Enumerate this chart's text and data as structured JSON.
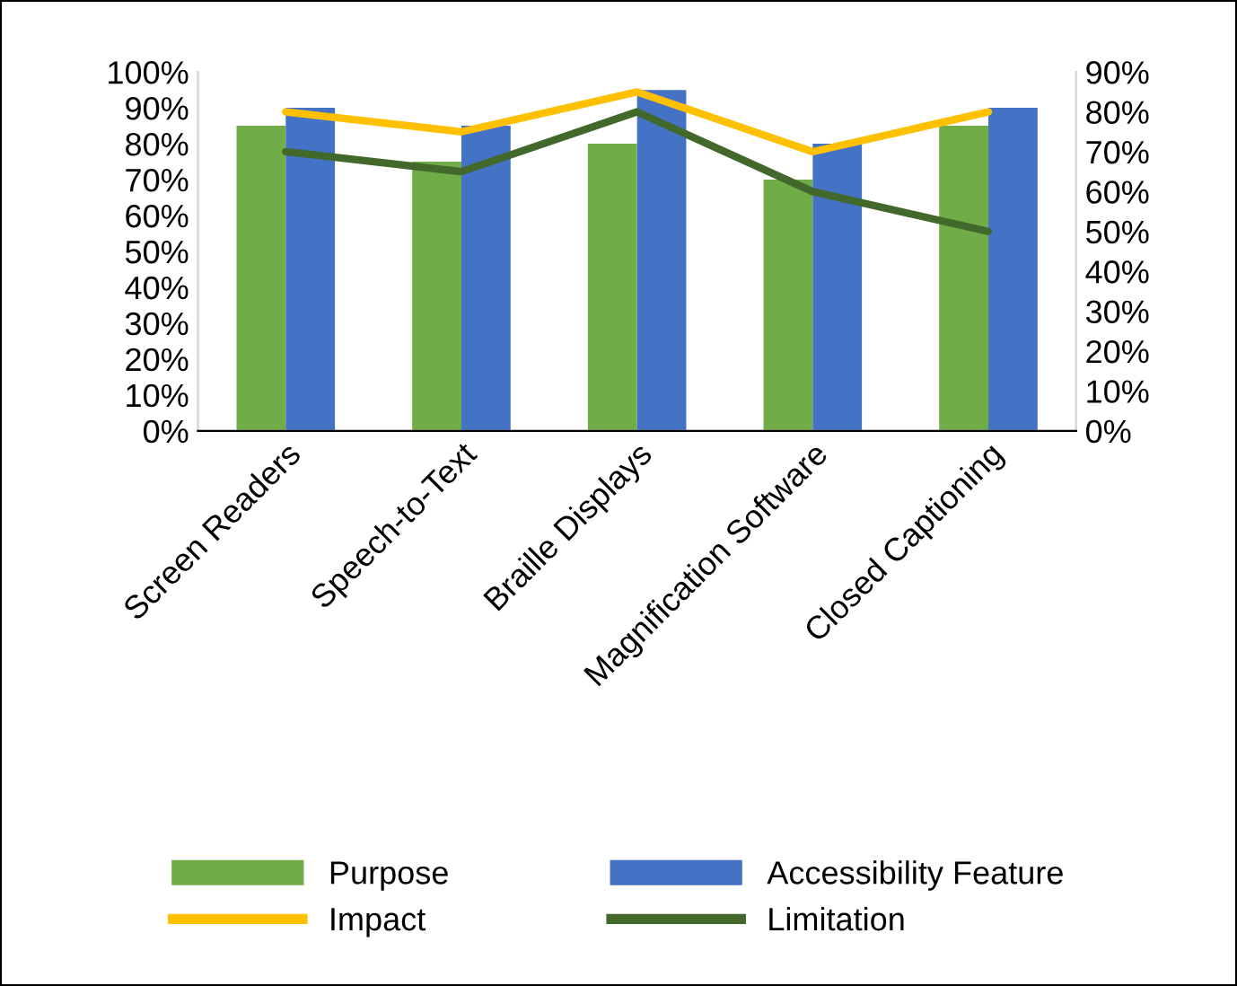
{
  "chart_data": {
    "type": "bar",
    "categories": [
      "Screen Readers",
      "Speech-to-Text",
      "Braille Displays",
      "Magnification Software",
      "Closed Captioning"
    ],
    "series": [
      {
        "name": "Purpose",
        "color": "#70ad47",
        "values": [
          85,
          75,
          80,
          70,
          85
        ]
      },
      {
        "name": "Accessibility Feature",
        "color": "#4472c4",
        "values": [
          90,
          85,
          95,
          80,
          90
        ]
      },
      {
        "name": "Impact",
        "type": "line",
        "axis": "y2",
        "color": "#ffc000",
        "values": [
          80,
          75,
          85,
          70,
          80
        ]
      },
      {
        "name": "Limitation",
        "type": "line",
        "axis": "y2",
        "color": "#43682b",
        "values": [
          70,
          65,
          80,
          60,
          50
        ]
      }
    ],
    "ylim": [
      0,
      100
    ],
    "yticks": [
      {
        "value": 0,
        "label": "0%"
      },
      {
        "value": 10,
        "label": "10%"
      },
      {
        "value": 20,
        "label": "20%"
      },
      {
        "value": 30,
        "label": "30%"
      },
      {
        "value": 40,
        "label": "40%"
      },
      {
        "value": 50,
        "label": "50%"
      },
      {
        "value": 60,
        "label": "60%"
      },
      {
        "value": 70,
        "label": "70%"
      },
      {
        "value": 80,
        "label": "80%"
      },
      {
        "value": 90,
        "label": "90%"
      },
      {
        "value": 100,
        "label": "100%"
      }
    ],
    "y2lim": [
      0,
      90
    ],
    "y2ticks": [
      {
        "value": 0,
        "label": "0%"
      },
      {
        "value": 10,
        "label": "10%"
      },
      {
        "value": 20,
        "label": "20%"
      },
      {
        "value": 30,
        "label": "30%"
      },
      {
        "value": 40,
        "label": "40%"
      },
      {
        "value": 50,
        "label": "50%"
      },
      {
        "value": 60,
        "label": "60%"
      },
      {
        "value": 70,
        "label": "70%"
      },
      {
        "value": 80,
        "label": "80%"
      },
      {
        "value": 90,
        "label": "90%"
      }
    ],
    "grid": false,
    "legend": "bottom",
    "marker": "none",
    "line_style": "solid"
  }
}
